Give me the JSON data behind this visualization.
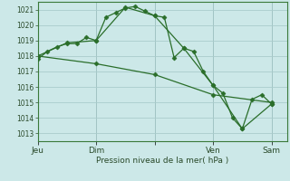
{
  "background_color": "#cce8e8",
  "grid_color": "#aacccc",
  "line_color": "#2a6e2a",
  "marker_color": "#2a6e2a",
  "x_tick_positions": [
    0,
    3,
    6,
    9,
    12
  ],
  "x_tick_labels": [
    "Jeu",
    "Dim",
    "",
    "Ven",
    "Sam"
  ],
  "xlabel": "Pression niveau de la mer( hPa )",
  "ylim": [
    1012.5,
    1021.5
  ],
  "yticks": [
    1013,
    1014,
    1015,
    1016,
    1017,
    1018,
    1019,
    1020,
    1021
  ],
  "series1_x": [
    0.0,
    0.5,
    1.0,
    1.5,
    2.0,
    2.5,
    3.0,
    3.5,
    4.0,
    4.5,
    5.0,
    5.5,
    6.0,
    6.5,
    7.0,
    7.5,
    8.0,
    8.5,
    9.0,
    9.5,
    10.0,
    10.5,
    11.0,
    11.5,
    12.0
  ],
  "series1_y": [
    1017.8,
    1018.3,
    1018.6,
    1018.8,
    1018.8,
    1019.2,
    1019.0,
    1020.5,
    1020.8,
    1021.1,
    1021.2,
    1020.9,
    1020.6,
    1020.5,
    1017.9,
    1018.5,
    1018.3,
    1017.0,
    1016.1,
    1015.6,
    1014.0,
    1013.3,
    1015.2,
    1015.5,
    1014.9
  ],
  "series2_x": [
    0.0,
    1.5,
    3.0,
    4.5,
    6.0,
    7.5,
    9.0,
    10.5,
    12.0
  ],
  "series2_y": [
    1018.0,
    1018.85,
    1019.0,
    1021.15,
    1020.6,
    1018.5,
    1016.1,
    1013.3,
    1014.9
  ],
  "series3_x": [
    0.0,
    3.0,
    6.0,
    9.0,
    12.0
  ],
  "series3_y": [
    1018.0,
    1017.5,
    1016.8,
    1015.5,
    1015.0
  ],
  "vlines_x": [
    0,
    3,
    6,
    9,
    12
  ],
  "xlim": [
    0,
    12.8
  ]
}
